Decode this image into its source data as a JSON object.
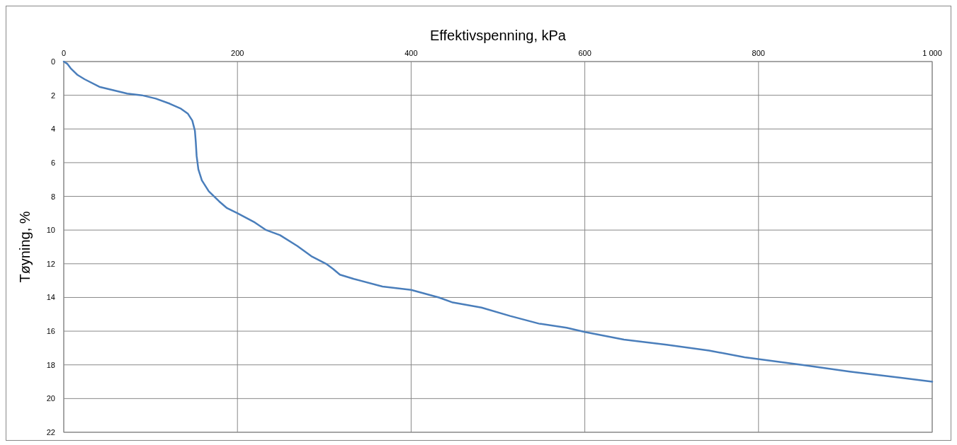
{
  "chart_data": {
    "type": "line",
    "xlabel": "Effektivspenning, kPa",
    "ylabel": "Tøyning, %",
    "xlim": [
      0,
      1000
    ],
    "xticks": [
      0,
      200,
      400,
      600,
      800,
      {
        "value": 1000,
        "label": "1 000"
      }
    ],
    "ylim": [
      22,
      0
    ],
    "yticks": [
      0,
      2,
      4,
      6,
      8,
      10,
      12,
      14,
      16,
      18,
      20,
      22
    ],
    "grid": true,
    "marker": "none",
    "line_style": "solid",
    "series": [
      {
        "color": "#4a7ebb",
        "x": [
          0,
          4,
          8,
          16,
          24,
          41,
          57,
          73,
          90,
          106,
          122,
          135,
          143,
          148,
          151,
          152,
          153,
          155,
          159,
          167,
          179,
          188,
          200,
          220,
          233,
          249,
          269,
          285,
          302,
          310,
          318,
          334,
          367,
          400,
          432,
          448,
          481,
          514,
          547,
          579,
          600,
          645,
          694,
          743,
          784,
          850,
          905,
          954,
          1000
        ],
        "values": [
          0,
          0.13,
          0.4,
          0.8,
          1.05,
          1.5,
          1.7,
          1.9,
          2.0,
          2.2,
          2.5,
          2.8,
          3.1,
          3.5,
          4.1,
          4.75,
          5.6,
          6.4,
          7.05,
          7.7,
          8.3,
          8.7,
          9.0,
          9.55,
          10.0,
          10.3,
          10.95,
          11.55,
          12.0,
          12.3,
          12.65,
          12.9,
          13.35,
          13.55,
          14.0,
          14.3,
          14.6,
          15.1,
          15.55,
          15.8,
          16.05,
          16.5,
          16.8,
          17.15,
          17.55,
          18.0,
          18.4,
          18.7,
          19.0
        ]
      }
    ]
  }
}
